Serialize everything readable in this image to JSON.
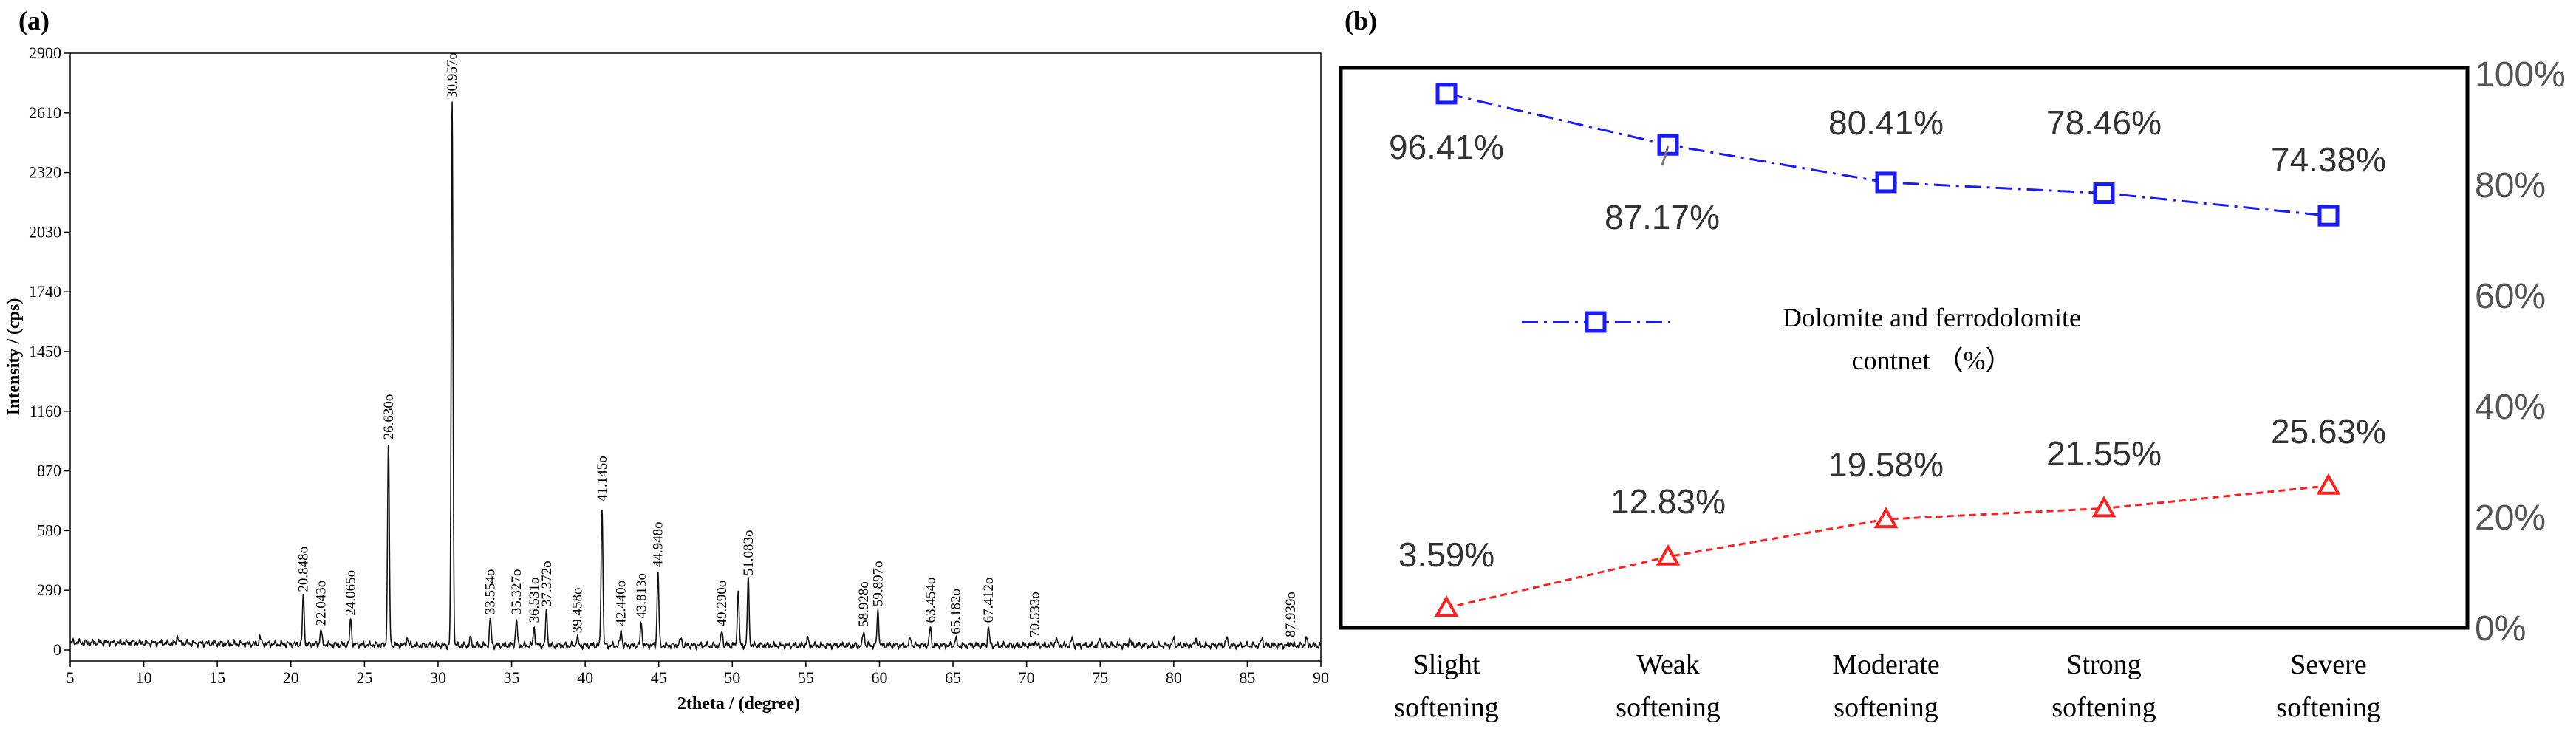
{
  "chart_data": [
    {
      "panel": "(a)",
      "type": "line",
      "xlabel": "2theta / (degree)",
      "ylabel": "Intensity / (cps)",
      "xlim": [
        5,
        90
      ],
      "ylim": [
        -50,
        2900
      ],
      "xticks": [
        5,
        10,
        15,
        20,
        25,
        30,
        35,
        40,
        45,
        50,
        55,
        60,
        65,
        70,
        75,
        80,
        85,
        90
      ],
      "yticks": [
        0,
        290,
        580,
        870,
        1160,
        1450,
        1740,
        2030,
        2320,
        2610,
        2900
      ],
      "baseline": 22,
      "peaks": [
        {
          "x": 20.848,
          "y": 260,
          "label": "20.848o"
        },
        {
          "x": 22.043,
          "y": 95,
          "label": "22.043o"
        },
        {
          "x": 24.065,
          "y": 145,
          "label": "24.065o"
        },
        {
          "x": 26.63,
          "y": 1000,
          "label": "26.630o"
        },
        {
          "x": 30.957,
          "y": 2660,
          "label": "30.957o"
        },
        {
          "x": 33.554,
          "y": 150,
          "label": "33.554o"
        },
        {
          "x": 35.327,
          "y": 150,
          "label": "35.327o"
        },
        {
          "x": 36.531,
          "y": 110,
          "label": "36.531o"
        },
        {
          "x": 37.372,
          "y": 190,
          "label": "37.372o"
        },
        {
          "x": 39.458,
          "y": 60,
          "label": "39.458o"
        },
        {
          "x": 41.145,
          "y": 700,
          "label": "41.145o"
        },
        {
          "x": 42.44,
          "y": 95,
          "label": "42.440o"
        },
        {
          "x": 43.813,
          "y": 130,
          "label": "43.813o"
        },
        {
          "x": 44.948,
          "y": 380,
          "label": "44.948o"
        },
        {
          "x": 49.29,
          "y": 95,
          "label": "49.290o"
        },
        {
          "x": 50.4,
          "y": 290,
          "label": ""
        },
        {
          "x": 51.083,
          "y": 340,
          "label": "51.083o"
        },
        {
          "x": 58.928,
          "y": 90,
          "label": "58.928o"
        },
        {
          "x": 59.897,
          "y": 190,
          "label": "59.897o"
        },
        {
          "x": 63.454,
          "y": 110,
          "label": "63.454o"
        },
        {
          "x": 65.182,
          "y": 55,
          "label": "65.182o"
        },
        {
          "x": 67.412,
          "y": 110,
          "label": "67.412o"
        },
        {
          "x": 70.533,
          "y": 40,
          "label": "70.533o"
        },
        {
          "x": 87.939,
          "y": 40,
          "label": "87.939o"
        }
      ]
    },
    {
      "panel": "(b)",
      "type": "line",
      "categories": [
        [
          "Slight",
          "softening"
        ],
        [
          "Weak",
          "softening"
        ],
        [
          "Moderate",
          "softening"
        ],
        [
          "Strong",
          "softening"
        ],
        [
          "Severe",
          "softening"
        ]
      ],
      "ylim": [
        0,
        100
      ],
      "yticks": [
        0,
        20,
        40,
        60,
        80,
        100
      ],
      "ytick_labels": [
        "0%",
        "20%",
        "40%",
        "60%",
        "80%",
        "100%"
      ],
      "series": [
        {
          "name": "Dolomite and ferrodolomite contnet （%）",
          "legend_line1": "Dolomite and ferrodolomite",
          "legend_line2": "contnet （%）",
          "values": [
            96.41,
            87.17,
            80.41,
            78.46,
            74.38
          ],
          "labels": [
            "96.41%",
            "87.17%",
            "80.41%",
            "78.46%",
            "74.38%"
          ],
          "color": "#1a1aff",
          "marker": "square",
          "dash": "dash-dot"
        },
        {
          "name": "",
          "values": [
            3.59,
            12.83,
            19.58,
            21.55,
            25.63
          ],
          "labels": [
            "3.59%",
            "12.83%",
            "19.58%",
            "21.55%",
            "25.63%"
          ],
          "color": "#ff2020",
          "marker": "triangle",
          "dash": "dashed"
        }
      ]
    }
  ]
}
